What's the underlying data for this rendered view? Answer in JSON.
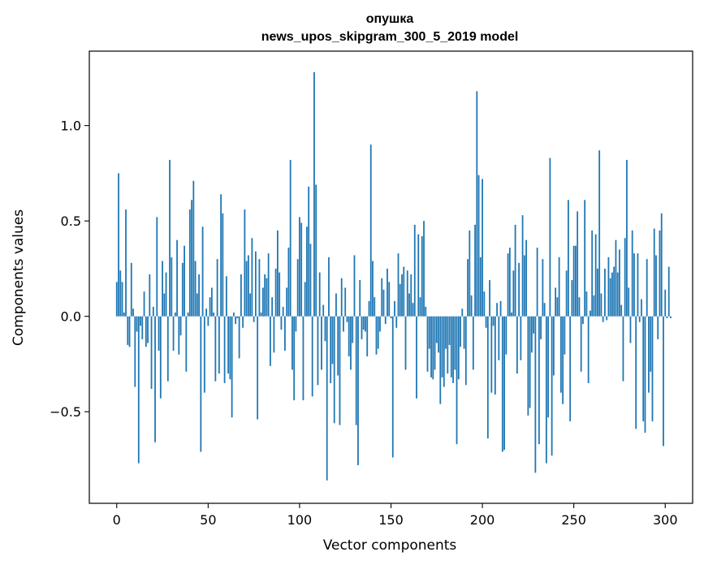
{
  "chart_data": {
    "type": "bar",
    "title_line1": "опушка",
    "title_line2": "news_upos_skipgram_300_5_2019 model",
    "xlabel": "Vector components",
    "ylabel": "Components values",
    "xlim": [
      -15,
      315
    ],
    "ylim": [
      -0.98,
      1.39
    ],
    "x_ticks": [
      0,
      50,
      100,
      150,
      200,
      250,
      300
    ],
    "y_ticks": [
      -0.5,
      0.0,
      0.5,
      1.0
    ],
    "x_tick_labels": [
      "0",
      "50",
      "100",
      "150",
      "200",
      "250",
      "300"
    ],
    "y_tick_labels": [
      "−0.5",
      "0.0",
      "0.5",
      "1.0"
    ],
    "grid": false,
    "bar_color": "#1f77b4",
    "values": [
      0.18,
      0.75,
      0.24,
      0.18,
      0.02,
      0.56,
      -0.15,
      -0.16,
      0.28,
      0.04,
      -0.37,
      -0.08,
      -0.77,
      -0.05,
      -0.12,
      0.13,
      -0.16,
      -0.14,
      0.22,
      -0.38,
      0.05,
      -0.66,
      0.52,
      -0.18,
      -0.43,
      0.29,
      0.12,
      0.23,
      -0.34,
      0.82,
      0.31,
      -0.18,
      0.02,
      0.4,
      -0.2,
      -0.1,
      0.28,
      0.37,
      -0.29,
      0.02,
      0.56,
      0.61,
      0.71,
      0.29,
      0.12,
      0.22,
      -0.71,
      0.47,
      -0.4,
      0.04,
      -0.05,
      0.1,
      0.15,
      0.02,
      -0.34,
      0.3,
      -0.3,
      0.64,
      0.54,
      -0.35,
      0.21,
      -0.3,
      -0.33,
      -0.53,
      0.02,
      -0.04,
      -0.01,
      -0.22,
      0.22,
      -0.06,
      0.56,
      0.29,
      0.32,
      0.12,
      0.41,
      -0.03,
      0.34,
      -0.54,
      0.3,
      0.02,
      0.15,
      0.22,
      0.2,
      0.33,
      -0.26,
      0.1,
      -0.19,
      0.25,
      0.45,
      0.23,
      -0.07,
      0.05,
      -0.18,
      0.15,
      0.36,
      0.82,
      -0.28,
      -0.44,
      -0.08,
      0.3,
      0.52,
      0.49,
      -0.44,
      0.18,
      0.47,
      0.68,
      0.38,
      -0.42,
      1.28,
      0.69,
      -0.36,
      0.23,
      -0.28,
      0.06,
      -0.13,
      -0.86,
      0.31,
      -0.35,
      -0.25,
      -0.56,
      0.12,
      -0.31,
      -0.57,
      0.2,
      -0.08,
      0.15,
      -0.03,
      -0.21,
      -0.28,
      -0.14,
      0.32,
      -0.57,
      -0.78,
      0.19,
      -0.12,
      -0.07,
      -0.08,
      -0.21,
      0.08,
      0.9,
      0.29,
      0.1,
      -0.2,
      -0.17,
      -0.08,
      0.2,
      0.14,
      -0.04,
      0.25,
      0.18,
      -0.01,
      -0.74,
      0.08,
      -0.06,
      0.33,
      0.17,
      0.22,
      0.26,
      -0.28,
      0.24,
      0.12,
      0.22,
      0.07,
      0.48,
      -0.43,
      0.43,
      0.1,
      0.42,
      0.5,
      0.05,
      -0.29,
      -0.17,
      -0.32,
      -0.33,
      -0.28,
      -0.14,
      -0.19,
      -0.46,
      -0.32,
      -0.37,
      -0.17,
      -0.3,
      -0.15,
      -0.32,
      -0.35,
      -0.28,
      -0.67,
      -0.33,
      -0.16,
      0.04,
      -0.17,
      -0.36,
      0.3,
      0.45,
      0.11,
      -0.28,
      0.48,
      1.18,
      0.74,
      0.31,
      0.72,
      0.13,
      -0.06,
      -0.64,
      0.19,
      -0.4,
      -0.05,
      -0.41,
      0.07,
      -0.23,
      0.08,
      -0.71,
      -0.7,
      -0.2,
      0.33,
      0.36,
      0.02,
      0.24,
      0.48,
      -0.3,
      0.28,
      -0.23,
      0.53,
      0.32,
      0.4,
      -0.52,
      -0.48,
      -0.19,
      -0.09,
      -0.82,
      0.36,
      -0.67,
      -0.12,
      0.3,
      0.07,
      -0.77,
      -0.53,
      0.83,
      -0.73,
      -0.31,
      0.15,
      0.1,
      0.31,
      -0.4,
      -0.46,
      -0.2,
      0.24,
      0.61,
      -0.55,
      0.19,
      0.37,
      0.37,
      0.55,
      0.1,
      -0.29,
      -0.04,
      0.61,
      0.13,
      -0.35,
      0.03,
      0.45,
      0.11,
      0.43,
      0.25,
      0.87,
      0.12,
      -0.03,
      0.25,
      -0.02,
      0.31,
      0.2,
      0.23,
      0.26,
      0.4,
      0.23,
      0.35,
      0.06,
      -0.34,
      0.41,
      0.82,
      0.15,
      -0.14,
      0.45,
      0.33,
      -0.59,
      0.33,
      -0.03,
      0.09,
      -0.55,
      -0.61,
      0.3,
      -0.4,
      -0.29,
      -0.55,
      0.46,
      0.32,
      -0.12,
      0.45,
      0.54,
      -0.68,
      0.14,
      -0.01,
      0.26,
      -0.01
    ]
  }
}
